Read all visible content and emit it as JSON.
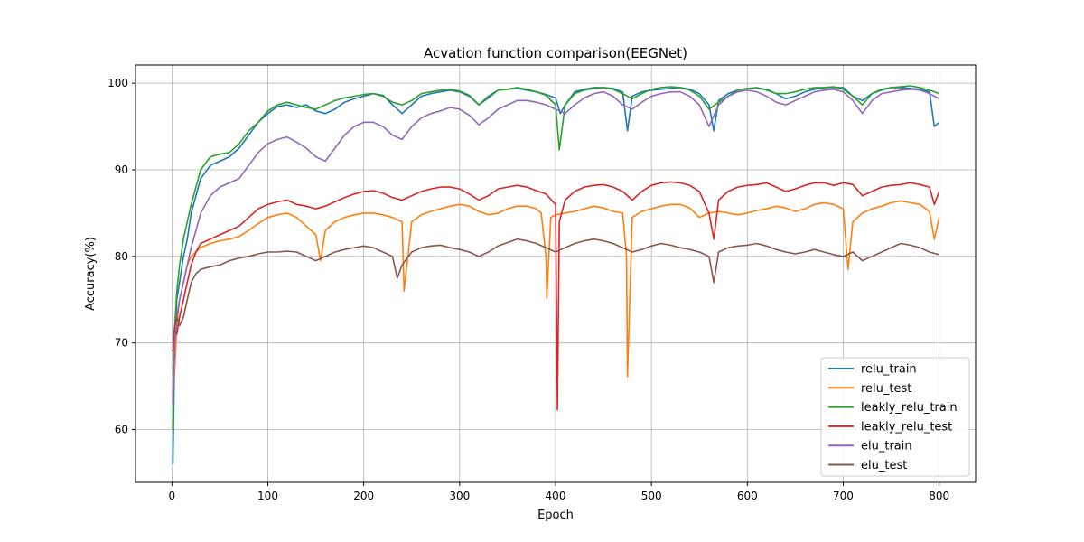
{
  "chart_data": {
    "type": "line",
    "title": "Acvation function comparison(EEGNet)",
    "xlabel": "Epoch",
    "ylabel": "Accuracy(%)",
    "xlim": [
      -38,
      838
    ],
    "ylim": [
      53.9,
      102.1
    ],
    "xticks": [
      0,
      100,
      200,
      300,
      400,
      500,
      600,
      700,
      800
    ],
    "yticks": [
      60,
      70,
      80,
      90,
      100
    ],
    "grid": true,
    "legend_position": "lower-right",
    "series": [
      {
        "name": "relu_train",
        "color": "#1f77b4",
        "x": [
          1,
          3,
          5,
          8,
          12,
          16,
          20,
          25,
          30,
          40,
          50,
          60,
          70,
          80,
          90,
          100,
          110,
          120,
          130,
          140,
          150,
          160,
          170,
          180,
          190,
          200,
          210,
          220,
          230,
          240,
          250,
          260,
          270,
          280,
          290,
          300,
          310,
          320,
          330,
          340,
          350,
          360,
          370,
          380,
          390,
          400,
          405,
          410,
          420,
          430,
          440,
          450,
          460,
          470,
          475,
          480,
          490,
          500,
          510,
          520,
          530,
          540,
          550,
          560,
          565,
          570,
          580,
          590,
          600,
          610,
          620,
          630,
          640,
          650,
          660,
          670,
          680,
          690,
          700,
          710,
          720,
          730,
          740,
          750,
          760,
          770,
          780,
          790,
          795,
          800
        ],
        "y": [
          56,
          70,
          75,
          77,
          80,
          82,
          85,
          87,
          89,
          90.5,
          91,
          91.5,
          92.5,
          94,
          95.5,
          96.5,
          97.3,
          97.5,
          97.2,
          97.5,
          96.8,
          96.5,
          97,
          97.8,
          98.2,
          98.5,
          98.8,
          98.6,
          97.5,
          96.5,
          97.5,
          98.5,
          98.8,
          99,
          99.2,
          99.0,
          98.5,
          97.5,
          98.3,
          99.2,
          99.3,
          99.4,
          99.2,
          99.0,
          98.7,
          98.3,
          96.5,
          97.5,
          99.0,
          99.3,
          99.5,
          99.5,
          99.4,
          99.0,
          94.5,
          98.5,
          99.0,
          99.2,
          99.3,
          99.4,
          99.5,
          99.3,
          98.8,
          97.5,
          94.5,
          98.0,
          98.8,
          99.2,
          99.4,
          99.4,
          99.3,
          98.8,
          98.2,
          98.5,
          99.0,
          99.3,
          99.5,
          99.5,
          99.5,
          98.5,
          98.0,
          98.8,
          99.2,
          99.5,
          99.5,
          99.4,
          99.3,
          99.0,
          95.0,
          95.5
        ]
      },
      {
        "name": "relu_test",
        "color": "#ff7f0e",
        "x": [
          1,
          3,
          5,
          8,
          12,
          16,
          20,
          25,
          30,
          40,
          50,
          60,
          70,
          80,
          90,
          100,
          110,
          120,
          130,
          140,
          150,
          155,
          160,
          170,
          180,
          190,
          200,
          210,
          220,
          230,
          240,
          242,
          250,
          260,
          270,
          280,
          290,
          300,
          310,
          320,
          330,
          340,
          350,
          360,
          370,
          380,
          385,
          390,
          391,
          395,
          400,
          410,
          420,
          430,
          440,
          450,
          460,
          470,
          474,
          475,
          480,
          490,
          500,
          510,
          520,
          530,
          540,
          550,
          560,
          570,
          580,
          590,
          600,
          610,
          620,
          630,
          640,
          650,
          660,
          670,
          680,
          690,
          700,
          705,
          710,
          720,
          730,
          740,
          750,
          760,
          770,
          780,
          790,
          795,
          800
        ],
        "y": [
          64,
          67,
          72,
          75,
          77,
          79,
          80,
          80.5,
          81,
          81.5,
          81.8,
          82,
          82.3,
          83,
          83.8,
          84.5,
          84.8,
          85,
          84.5,
          83.5,
          82.5,
          79.5,
          83,
          84.0,
          84.5,
          84.8,
          85,
          85,
          84.8,
          84.5,
          84.0,
          76,
          84,
          84.8,
          85.2,
          85.5,
          85.8,
          86,
          85.8,
          85.2,
          84.8,
          85.0,
          85.5,
          85.8,
          85.8,
          85.5,
          85.0,
          80.0,
          75.2,
          84.5,
          84.8,
          85.0,
          85.2,
          85.5,
          85.8,
          85.6,
          85.2,
          85.0,
          80.0,
          66.1,
          84.5,
          85.2,
          85.5,
          85.8,
          86.0,
          86.0,
          85.6,
          84.5,
          85.0,
          85.2,
          85.0,
          84.8,
          85.0,
          85.3,
          85.5,
          85.8,
          85.6,
          85.2,
          85.5,
          86.0,
          86.2,
          86.0,
          85.5,
          78.5,
          84.0,
          85.0,
          85.5,
          85.8,
          86.2,
          86.4,
          86.2,
          86.0,
          85.2,
          82.0,
          84.5
        ]
      },
      {
        "name": "leakly_relu_train",
        "color": "#2ca02c",
        "x": [
          1,
          3,
          5,
          8,
          12,
          16,
          20,
          25,
          30,
          40,
          50,
          60,
          70,
          80,
          90,
          100,
          110,
          120,
          130,
          140,
          150,
          160,
          170,
          180,
          190,
          200,
          210,
          220,
          230,
          240,
          250,
          260,
          270,
          280,
          290,
          300,
          310,
          320,
          330,
          340,
          350,
          360,
          370,
          380,
          390,
          400,
          404,
          410,
          420,
          430,
          440,
          450,
          460,
          470,
          480,
          490,
          500,
          510,
          520,
          530,
          540,
          550,
          560,
          570,
          580,
          590,
          600,
          610,
          620,
          630,
          640,
          650,
          660,
          670,
          680,
          690,
          700,
          710,
          720,
          730,
          740,
          750,
          760,
          770,
          780,
          790,
          800
        ],
        "y": [
          60,
          72,
          76,
          79,
          82,
          84,
          86,
          88,
          90,
          91.5,
          91.8,
          92.0,
          93.0,
          94.5,
          95.5,
          96.8,
          97.5,
          97.8,
          97.5,
          97.2,
          97.0,
          97.5,
          98.0,
          98.3,
          98.5,
          98.7,
          98.8,
          98.5,
          97.8,
          97.5,
          98.0,
          98.8,
          99.0,
          99.2,
          99.3,
          99.1,
          98.6,
          97.5,
          98.5,
          99.2,
          99.3,
          99.5,
          99.3,
          99.0,
          98.6,
          97.5,
          92.3,
          97.5,
          98.8,
          99.2,
          99.4,
          99.5,
          99.3,
          98.8,
          98.2,
          98.8,
          99.3,
          99.5,
          99.6,
          99.5,
          99.2,
          98.5,
          97.0,
          97.8,
          98.5,
          99.2,
          99.4,
          99.5,
          99.2,
          98.8,
          98.8,
          99.0,
          99.3,
          99.5,
          99.5,
          99.6,
          99.3,
          98.5,
          97.5,
          98.8,
          99.3,
          99.5,
          99.6,
          99.7,
          99.5,
          99.2,
          98.8
        ]
      },
      {
        "name": "leakly_relu_test",
        "color": "#d62728",
        "x": [
          1,
          3,
          5,
          8,
          12,
          16,
          20,
          25,
          30,
          40,
          50,
          60,
          70,
          80,
          90,
          100,
          110,
          120,
          130,
          140,
          150,
          160,
          170,
          180,
          190,
          200,
          210,
          220,
          230,
          240,
          250,
          260,
          270,
          280,
          290,
          300,
          310,
          320,
          330,
          340,
          350,
          360,
          370,
          380,
          390,
          400,
          402,
          404,
          410,
          420,
          430,
          440,
          450,
          460,
          470,
          480,
          490,
          500,
          510,
          520,
          530,
          540,
          550,
          560,
          565,
          570,
          580,
          590,
          600,
          610,
          620,
          630,
          640,
          650,
          660,
          670,
          680,
          690,
          700,
          710,
          720,
          730,
          740,
          750,
          760,
          770,
          780,
          790,
          795,
          800
        ],
        "y": [
          69,
          72,
          71,
          73,
          75,
          77,
          79,
          80.5,
          81.5,
          82.0,
          82.5,
          83.0,
          83.5,
          84.5,
          85.5,
          86.0,
          86.3,
          86.5,
          86.0,
          85.8,
          85.5,
          85.8,
          86.3,
          86.8,
          87.2,
          87.5,
          87.6,
          87.3,
          86.8,
          86.5,
          87.0,
          87.5,
          87.8,
          88.0,
          88.0,
          87.8,
          87.2,
          86.5,
          87.0,
          87.8,
          88.0,
          88.2,
          88.0,
          87.6,
          87.2,
          86.0,
          62.3,
          84.0,
          86.5,
          87.5,
          88.0,
          88.2,
          88.3,
          88.0,
          87.5,
          86.5,
          87.5,
          88.2,
          88.5,
          88.6,
          88.5,
          88.2,
          87.5,
          85.0,
          82.0,
          86.5,
          87.5,
          88.0,
          88.2,
          88.3,
          88.5,
          88.0,
          87.5,
          87.8,
          88.2,
          88.5,
          88.5,
          88.2,
          88.5,
          88.3,
          87.0,
          87.5,
          88.0,
          88.2,
          88.3,
          88.5,
          88.3,
          88.0,
          86.0,
          87.5
        ]
      },
      {
        "name": "elu_train",
        "color": "#9467bd",
        "x": [
          1,
          3,
          5,
          8,
          12,
          16,
          20,
          25,
          30,
          40,
          50,
          60,
          70,
          80,
          90,
          100,
          110,
          120,
          130,
          140,
          150,
          160,
          170,
          180,
          190,
          200,
          210,
          220,
          230,
          240,
          250,
          260,
          270,
          280,
          290,
          300,
          310,
          320,
          330,
          340,
          350,
          360,
          370,
          380,
          390,
          400,
          410,
          420,
          430,
          440,
          450,
          460,
          470,
          480,
          490,
          500,
          510,
          520,
          530,
          540,
          550,
          560,
          570,
          580,
          590,
          600,
          610,
          620,
          630,
          640,
          650,
          660,
          670,
          680,
          690,
          700,
          710,
          720,
          730,
          740,
          750,
          760,
          770,
          780,
          790,
          800
        ],
        "y": [
          63,
          70,
          73,
          75,
          77,
          79,
          81,
          83,
          85,
          87.0,
          88.0,
          88.5,
          89.0,
          90.5,
          92.0,
          93.0,
          93.5,
          93.8,
          93.2,
          92.5,
          91.5,
          91.0,
          92.5,
          94.0,
          95.0,
          95.5,
          95.5,
          95.0,
          94.0,
          93.5,
          95.0,
          96.0,
          96.5,
          96.8,
          97.2,
          97.0,
          96.3,
          95.2,
          96.0,
          97.0,
          97.5,
          98.0,
          98.0,
          97.8,
          97.5,
          97.0,
          96.5,
          97.5,
          98.3,
          98.8,
          99.0,
          98.5,
          97.5,
          97.0,
          97.8,
          98.5,
          98.8,
          99.0,
          99.0,
          98.5,
          97.5,
          95.0,
          97.5,
          98.5,
          99.0,
          99.2,
          99.0,
          98.5,
          97.8,
          97.5,
          98.0,
          98.5,
          99.0,
          99.2,
          99.3,
          99.0,
          98.0,
          96.5,
          98.0,
          98.8,
          99.0,
          99.2,
          99.3,
          99.2,
          98.8,
          98.2
        ]
      },
      {
        "name": "elu_test",
        "color": "#8c564b",
        "x": [
          1,
          3,
          5,
          8,
          12,
          16,
          20,
          25,
          30,
          40,
          50,
          60,
          70,
          80,
          90,
          100,
          110,
          120,
          130,
          140,
          150,
          160,
          170,
          180,
          190,
          200,
          210,
          220,
          230,
          235,
          240,
          250,
          260,
          270,
          280,
          290,
          300,
          310,
          320,
          330,
          340,
          350,
          360,
          370,
          380,
          390,
          400,
          410,
          420,
          430,
          440,
          450,
          460,
          470,
          480,
          490,
          500,
          510,
          520,
          530,
          540,
          550,
          560,
          565,
          570,
          580,
          590,
          600,
          610,
          620,
          630,
          640,
          650,
          660,
          670,
          680,
          690,
          700,
          710,
          720,
          730,
          740,
          750,
          760,
          770,
          780,
          790,
          800
        ],
        "y": [
          70,
          72,
          73,
          72,
          73,
          75,
          77,
          78,
          78.5,
          78.8,
          79.0,
          79.5,
          79.8,
          80.0,
          80.3,
          80.5,
          80.5,
          80.6,
          80.5,
          80.0,
          79.5,
          80.0,
          80.5,
          80.8,
          81.0,
          81.2,
          81.0,
          80.5,
          80.0,
          77.5,
          79.0,
          80.5,
          81.0,
          81.2,
          81.3,
          81.0,
          80.8,
          80.5,
          80.0,
          80.5,
          81.2,
          81.6,
          82.0,
          81.8,
          81.5,
          81.0,
          80.5,
          81.0,
          81.5,
          81.8,
          82.0,
          81.8,
          81.5,
          81.0,
          80.5,
          80.8,
          81.2,
          81.5,
          81.3,
          81.0,
          80.8,
          80.5,
          80.0,
          77.0,
          80.5,
          81.0,
          81.2,
          81.3,
          81.5,
          81.2,
          80.8,
          80.5,
          80.3,
          80.5,
          80.8,
          80.5,
          80.2,
          80.0,
          80.5,
          79.5,
          80.0,
          80.5,
          81.0,
          81.5,
          81.3,
          81.0,
          80.5,
          80.2
        ]
      }
    ]
  }
}
